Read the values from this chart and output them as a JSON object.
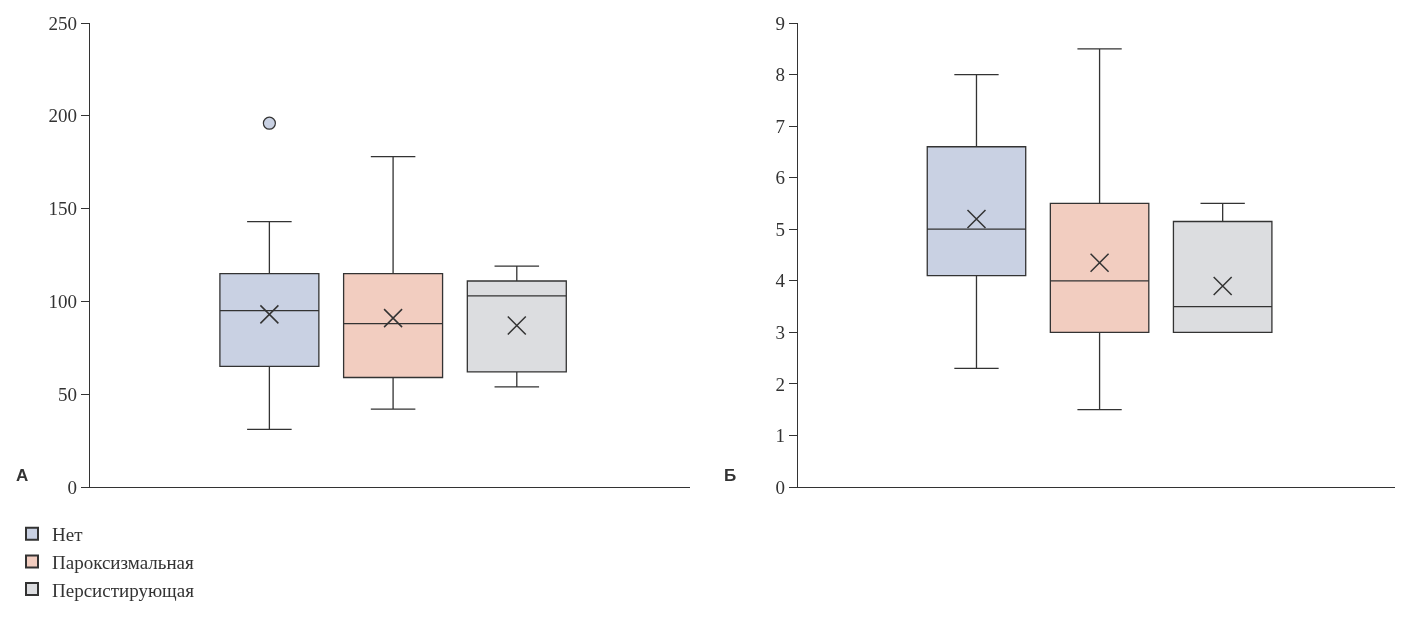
{
  "chart_data": [
    {
      "type": "box",
      "annotations": [
        "А"
      ],
      "categories": [
        null
      ],
      "ylim": [
        0,
        250
      ],
      "yticks": [
        0,
        50,
        100,
        150,
        200,
        250
      ],
      "grid": false,
      "legend": "bottom left",
      "tick_labels": "y",
      "series": [
        {
          "name": "Нет",
          "color": "#c9d1e3",
          "boxes": [
            {
              "low": 31,
              "q1": 65,
              "median": 95,
              "q3": 115,
              "high": 143,
              "mean": 93,
              "outliers": [
                196
              ]
            }
          ]
        },
        {
          "name": "Пароксизмальная",
          "color": "#f2cdc0",
          "boxes": [
            {
              "low": 42,
              "q1": 59,
              "median": 88,
              "q3": 115,
              "high": 178,
              "mean": 91
            }
          ]
        },
        {
          "name": "Персистирующая",
          "color": "#dcdde0",
          "boxes": [
            {
              "low": 54,
              "q1": 62,
              "median": 103,
              "q3": 111,
              "high": 119,
              "mean": 87
            }
          ]
        }
      ]
    },
    {
      "type": "box",
      "annotations": [
        "Б"
      ],
      "categories": [
        null
      ],
      "ylim": [
        0,
        9
      ],
      "yticks": [
        0,
        1,
        2,
        3,
        4,
        5,
        6,
        7,
        8,
        9
      ],
      "grid": false,
      "legend": false,
      "tick_labels": "y",
      "series": [
        {
          "color": "#c9d1e3",
          "boxes": [
            {
              "low": 2.3,
              "q1": 4.1,
              "median": 5,
              "q3": 6.6,
              "high": 8,
              "mean": 5.2
            }
          ]
        },
        {
          "color": "#f2cdc0",
          "boxes": [
            {
              "low": 1.5,
              "q1": 3,
              "median": 4,
              "q3": 5.5,
              "high": 8.5,
              "mean": 4.35
            }
          ]
        },
        {
          "color": "#dcdde0",
          "boxes": [
            {
              "low": 3,
              "q1": 3,
              "median": 3.5,
              "q3": 5.15,
              "high": 5.5,
              "mean": 3.9
            }
          ]
        }
      ]
    }
  ]
}
